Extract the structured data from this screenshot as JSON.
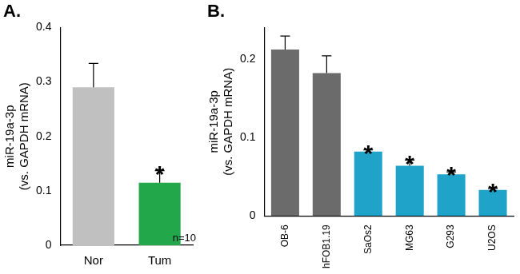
{
  "chart_data": [
    {
      "type": "bar",
      "title": "A.",
      "y_label": [
        "miR-19a-3p",
        "(vs. GAPDH mRNA)"
      ],
      "categories": [
        "Nor",
        "Tum"
      ],
      "values": [
        0.29,
        0.115
      ],
      "errors": [
        0.044,
        0.022
      ],
      "colors": [
        "#c0c0c0",
        "#22a84a"
      ],
      "ylim": [
        0,
        0.4
      ],
      "yticks": [
        0,
        0.1,
        0.2,
        0.3,
        0.4
      ],
      "grid": false,
      "annotations": [
        {
          "text": "*",
          "category": "Tum"
        },
        {
          "text": "n=10"
        }
      ]
    },
    {
      "type": "bar",
      "title": "B.",
      "y_label": [
        "miR-19a-3p",
        "(vs. GAPDH mRNA)"
      ],
      "categories": [
        "OB-6",
        "hFOB1.19",
        "SaOs2",
        "MG63",
        "G293",
        "U2OS"
      ],
      "values": [
        0.212,
        0.182,
        0.082,
        0.064,
        0.053,
        0.033
      ],
      "errors": [
        0.017,
        0.022,
        0.002,
        0.007,
        0.003,
        0.002
      ],
      "colors": [
        "#6b6b6b",
        "#6b6b6b",
        "#1fa3c9",
        "#1fa3c9",
        "#1fa3c9",
        "#1fa3c9"
      ],
      "ylim": [
        0,
        0.24
      ],
      "yticks": [
        0,
        0.1,
        0.2
      ],
      "grid": false,
      "annotations": [
        {
          "text": "*",
          "category": "SaOs2"
        },
        {
          "text": "*",
          "category": "MG63"
        },
        {
          "text": "*",
          "category": "G293"
        },
        {
          "text": "*",
          "category": "U2OS"
        }
      ]
    }
  ]
}
